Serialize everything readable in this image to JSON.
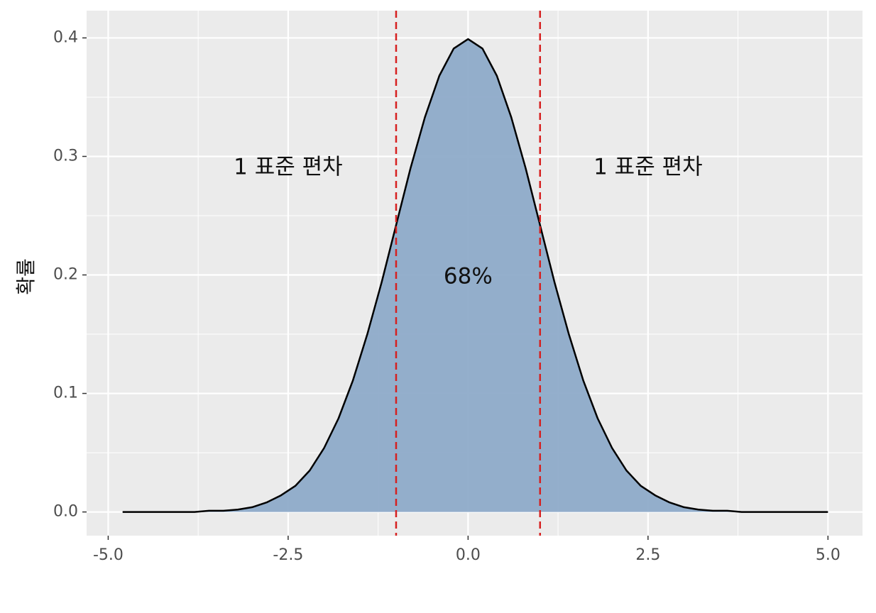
{
  "chart_data": {
    "type": "area",
    "y_label": "확률",
    "x": [
      -4.8,
      -4.6,
      -4.4,
      -4.2,
      -4.0,
      -3.8,
      -3.6,
      -3.4,
      -3.2,
      -3.0,
      -2.8,
      -2.6,
      -2.4,
      -2.2,
      -2.0,
      -1.8,
      -1.6,
      -1.4,
      -1.2,
      -1.0,
      -0.8,
      -0.6,
      -0.4,
      -0.2,
      0.0,
      0.2,
      0.4,
      0.6,
      0.8,
      1.0,
      1.2,
      1.4,
      1.6,
      1.8,
      2.0,
      2.2,
      2.4,
      2.6,
      2.8,
      3.0,
      3.2,
      3.4,
      3.6,
      3.8,
      4.0,
      4.2,
      4.4,
      4.6,
      4.8,
      5.0
    ],
    "values": [
      0.0,
      0.0,
      0.0,
      0.0,
      0.0,
      0.0,
      0.001,
      0.001,
      0.002,
      0.004,
      0.008,
      0.014,
      0.022,
      0.035,
      0.054,
      0.079,
      0.111,
      0.15,
      0.194,
      0.242,
      0.29,
      0.333,
      0.368,
      0.391,
      0.399,
      0.391,
      0.368,
      0.333,
      0.29,
      0.242,
      0.194,
      0.15,
      0.111,
      0.079,
      0.054,
      0.035,
      0.022,
      0.014,
      0.008,
      0.004,
      0.002,
      0.001,
      0.001,
      0.0,
      0.0,
      0.0,
      0.0,
      0.0,
      0.0,
      0.0
    ],
    "fill_color": "#8eabc9",
    "line_color": "#000000",
    "xlim": [
      -5.3,
      5.48
    ],
    "ylim": [
      -0.02,
      0.423
    ],
    "xticks": [
      -5.0,
      -2.5,
      0.0,
      2.5,
      5.0
    ],
    "xtick_labels": [
      "-5.0",
      "-2.5",
      "0.0",
      "2.5",
      "5.0"
    ],
    "yticks": [
      0.0,
      0.1,
      0.2,
      0.3,
      0.4
    ],
    "ytick_labels": [
      "0.0",
      "0.1",
      "0.2",
      "0.3",
      "0.4"
    ],
    "x_minor_grid": [
      -3.75,
      -1.25,
      1.25,
      3.75
    ],
    "y_minor_grid": [
      0.05,
      0.15,
      0.25,
      0.35
    ],
    "grid": true,
    "vlines": [
      {
        "value": -1,
        "color": "#d62020"
      },
      {
        "value": 1,
        "color": "#d62020"
      }
    ],
    "annotations": [
      {
        "text": "1 표준 편차",
        "x": -2.5,
        "y": 0.29
      },
      {
        "text": "1 표준 편차",
        "x": 2.5,
        "y": 0.29
      },
      {
        "text": "68%",
        "x": 0,
        "y": 0.198
      }
    ]
  }
}
